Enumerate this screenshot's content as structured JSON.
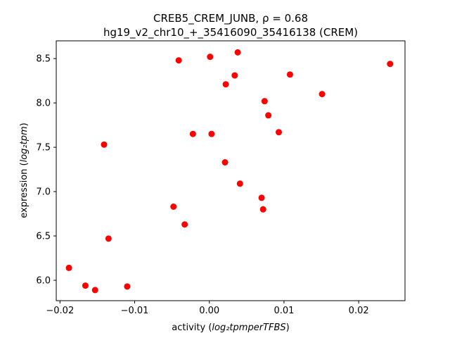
{
  "chart_data": {
    "type": "scatter",
    "title_line1": "CREB5_CREM_JUNB, ρ = 0.68",
    "title_line2": "hg19_v2_chr10_+_35416090_35416138 (CREM)",
    "xlabel_prefix": "activity (",
    "xlabel_math": "log₂tpmperTFBS",
    "xlabel_suffix": ")",
    "ylabel_prefix": "expression (",
    "ylabel_math": "log₂tpm",
    "ylabel_suffix": ")",
    "xlim": [
      -0.0205,
      0.0262
    ],
    "ylim": [
      5.77,
      8.7
    ],
    "xticks": [
      -0.02,
      -0.01,
      0.0,
      0.01,
      0.02
    ],
    "xtick_labels": [
      "−0.02",
      "−0.01",
      "0.00",
      "0.01",
      "0.02"
    ],
    "yticks": [
      6.0,
      6.5,
      7.0,
      7.5,
      8.0,
      8.5
    ],
    "ytick_labels": [
      "6.0",
      "6.5",
      "7.0",
      "7.5",
      "8.0",
      "8.5"
    ],
    "marker_color": "#ff0000",
    "points": [
      {
        "x": 0.0038,
        "y": 8.57
      },
      {
        "x": 0.0001,
        "y": 8.52
      },
      {
        "x": -0.0041,
        "y": 8.48
      },
      {
        "x": 0.0242,
        "y": 8.44
      },
      {
        "x": 0.0034,
        "y": 8.31
      },
      {
        "x": 0.0108,
        "y": 8.32
      },
      {
        "x": 0.0022,
        "y": 8.21
      },
      {
        "x": 0.0151,
        "y": 8.1
      },
      {
        "x": 0.0074,
        "y": 8.02
      },
      {
        "x": 0.0079,
        "y": 7.86
      },
      {
        "x": 0.0093,
        "y": 7.67
      },
      {
        "x": -0.0022,
        "y": 7.65
      },
      {
        "x": 0.0003,
        "y": 7.65
      },
      {
        "x": -0.0141,
        "y": 7.53
      },
      {
        "x": 0.0021,
        "y": 7.33
      },
      {
        "x": 0.0041,
        "y": 7.09
      },
      {
        "x": 0.007,
        "y": 6.93
      },
      {
        "x": 0.0072,
        "y": 6.8
      },
      {
        "x": -0.0048,
        "y": 6.83
      },
      {
        "x": -0.0033,
        "y": 6.63
      },
      {
        "x": -0.0135,
        "y": 6.47
      },
      {
        "x": -0.0188,
        "y": 6.14
      },
      {
        "x": -0.0166,
        "y": 5.94
      },
      {
        "x": -0.0153,
        "y": 5.89
      },
      {
        "x": -0.011,
        "y": 5.93
      }
    ]
  }
}
